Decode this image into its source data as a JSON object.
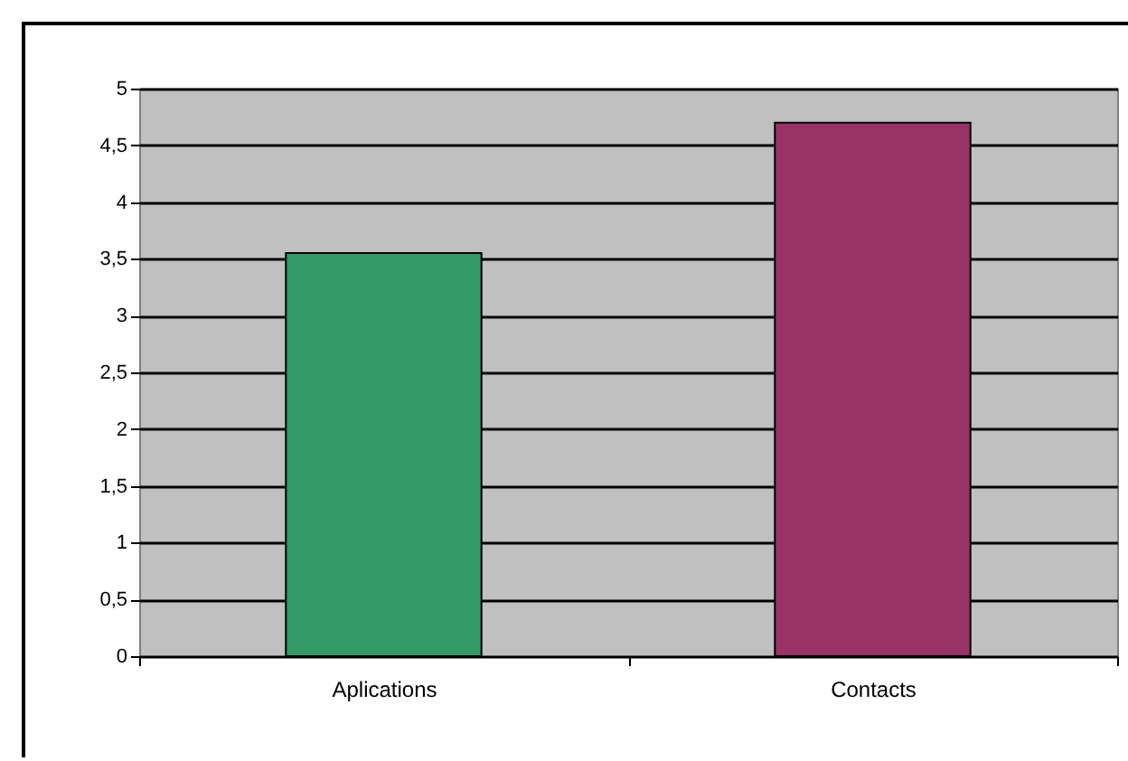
{
  "chart_data": {
    "type": "bar",
    "categories": [
      "Aplications",
      "Contacts"
    ],
    "values": [
      3.55,
      4.7
    ],
    "colors": [
      "#339966",
      "#993366"
    ],
    "ylim": [
      0,
      5
    ],
    "yticks": [
      0,
      {
        "value": 0.5,
        "label": "0,5"
      },
      1,
      {
        "value": 1.5,
        "label": "1,5"
      },
      2,
      {
        "value": 2.5,
        "label": "2,5"
      },
      3,
      {
        "value": 3.5,
        "label": "3,5"
      },
      4,
      {
        "value": 4.5,
        "label": "4,5"
      },
      5
    ],
    "grid": "y"
  }
}
